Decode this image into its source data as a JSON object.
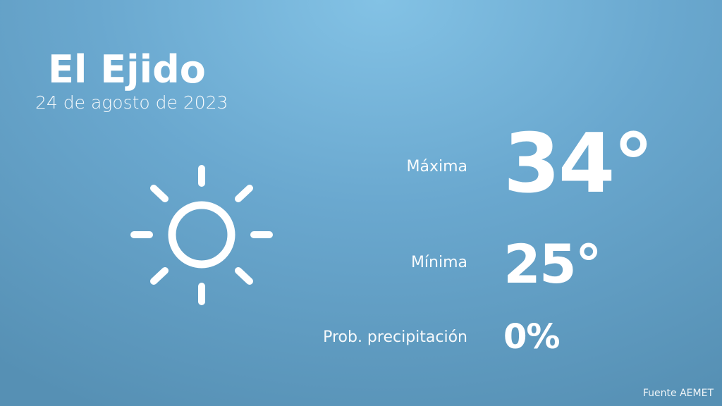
{
  "location": {
    "city": "El Ejido",
    "date": "24 de agosto de 2023"
  },
  "weather": {
    "icon": "sun-icon",
    "max_label": "Máxima",
    "max_value": "34°",
    "min_label": "Mínima",
    "min_value": "25°",
    "precip_label": "Prob. precipitación",
    "precip_value": "0%"
  },
  "footer": {
    "source": "Fuente AEMET"
  },
  "colors": {
    "background_top": "#83c2e5",
    "background_bottom": "#5690b4",
    "text": "#ffffff"
  }
}
